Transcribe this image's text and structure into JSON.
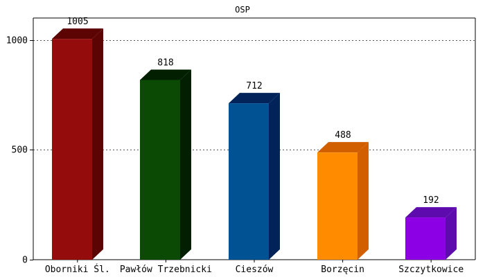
{
  "chart_data": {
    "type": "bar",
    "title": "OSP",
    "categories": [
      "Oborniki Śl.",
      "Pawłów Trzebnicki",
      "Cieszów",
      "Borzęcin",
      "Szczytkowice"
    ],
    "values": [
      1005,
      818,
      712,
      488,
      192
    ],
    "value_labels": [
      "1005",
      "818",
      "712",
      "488",
      "192"
    ],
    "colors": [
      "#940c0c",
      "#0a4a05",
      "#005293",
      "#ff8c00",
      "#8c00e6"
    ],
    "side_colors": [
      "#5c0303",
      "#022001",
      "#01235a",
      "#d15f00",
      "#5d0bad"
    ],
    "ylim": [
      0,
      1100
    ],
    "yticks": [
      0,
      500,
      1000
    ],
    "ytick_labels": [
      "0",
      "500",
      "1000"
    ],
    "grid": true,
    "grid_style": "dotted",
    "style": "3d-bars",
    "xlabel": "",
    "ylabel": ""
  }
}
